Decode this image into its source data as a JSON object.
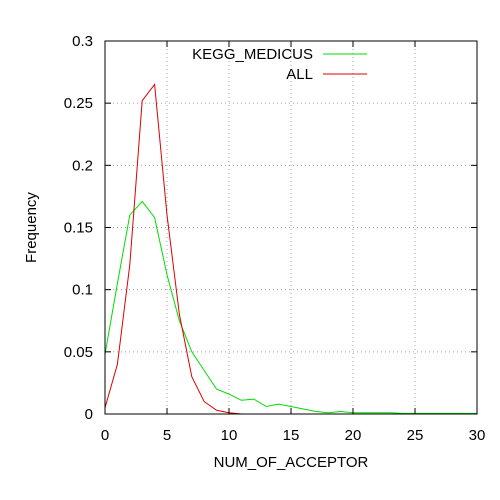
{
  "chart_data": {
    "type": "line",
    "title": "",
    "xlabel": "NUM_OF_ACCEPTOR",
    "ylabel": "Frequency",
    "xlim": [
      0,
      30
    ],
    "ylim": [
      0,
      0.3
    ],
    "xticks": [
      0,
      5,
      10,
      15,
      20,
      25,
      30
    ],
    "yticks": [
      0,
      0.05,
      0.1,
      0.15,
      0.2,
      0.25,
      0.3
    ],
    "xtick_labels": [
      "0",
      "5",
      "10",
      "15",
      "20",
      "25",
      "30"
    ],
    "ytick_labels": [
      "0",
      "0.05",
      "0.1",
      "0.15",
      "0.2",
      "0.25",
      "0.3"
    ],
    "grid": true,
    "legend_position": "top-right",
    "series": [
      {
        "name": "KEGG_MEDICUS",
        "color": "#00dd00",
        "x": [
          0,
          1,
          2,
          3,
          4,
          5,
          6,
          7,
          8,
          9,
          10,
          11,
          12,
          13,
          14,
          15,
          16,
          17,
          18,
          19,
          20,
          21,
          22,
          23,
          24,
          25,
          26,
          27,
          28,
          29,
          30
        ],
        "y": [
          0.048,
          0.105,
          0.16,
          0.171,
          0.158,
          0.112,
          0.075,
          0.05,
          0.035,
          0.02,
          0.016,
          0.011,
          0.012,
          0.006,
          0.008,
          0.006,
          0.004,
          0.002,
          0.001,
          0.002,
          0.001,
          0.001,
          0.001,
          0.001,
          0.0005,
          0.0005,
          0.0005,
          0.0005,
          0.0005,
          0.0005,
          0.0005
        ]
      },
      {
        "name": "ALL",
        "color": "#dd0000",
        "x": [
          0,
          1,
          2,
          3,
          4,
          5,
          6,
          7,
          8,
          9,
          10,
          11
        ],
        "y": [
          0.005,
          0.04,
          0.12,
          0.252,
          0.265,
          0.16,
          0.08,
          0.03,
          0.01,
          0.003,
          0.001,
          0.0
        ]
      }
    ]
  }
}
